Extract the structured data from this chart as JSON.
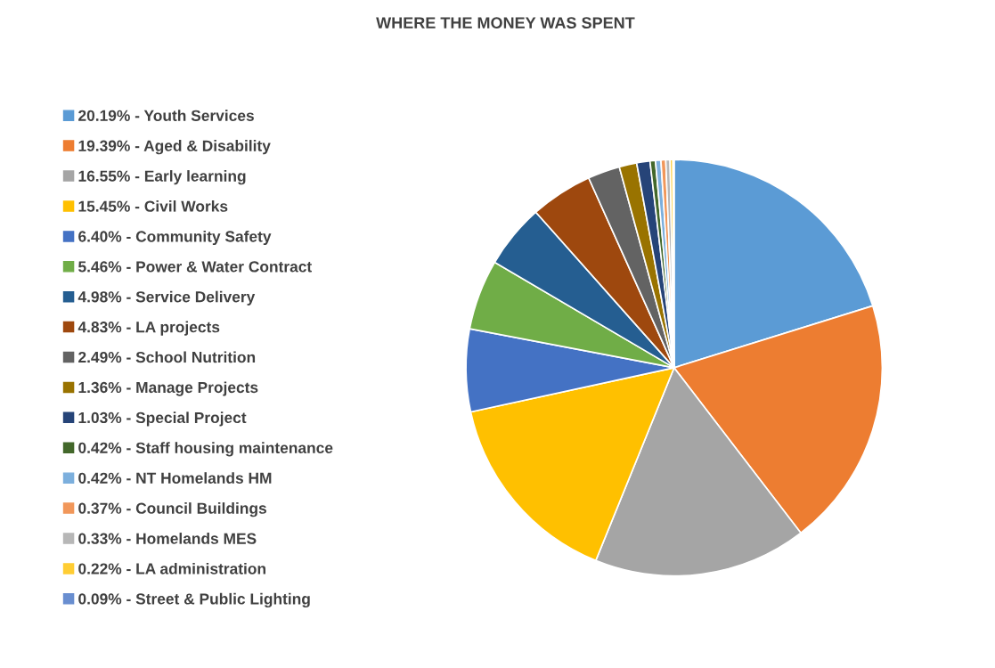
{
  "chart_data": {
    "type": "pie",
    "title": "WHERE THE MONEY WAS SPENT",
    "categories": [
      "20.19% - Youth Services",
      "19.39% - Aged & Disability",
      "16.55% - Early learning",
      "15.45% - Civil Works",
      "6.40% - Community Safety",
      "5.46% - Power & Water Contract",
      "4.98% - Service Delivery",
      "4.83% - LA projects",
      "2.49% - School Nutrition",
      "1.36% - Manage Projects",
      "1.03% - Special Project",
      "0.42% - Staff housing maintenance",
      "0.42% - NT Homelands HM",
      "0.37% - Council Buildings",
      "0.33% - Homelands MES",
      "0.22% - LA administration",
      "0.09% - Street & Public Lighting"
    ],
    "values": [
      20.19,
      19.39,
      16.55,
      15.45,
      6.4,
      5.46,
      4.98,
      4.83,
      2.49,
      1.36,
      1.03,
      0.42,
      0.42,
      0.37,
      0.33,
      0.22,
      0.09
    ],
    "colors": [
      "#5b9bd5",
      "#ed7d31",
      "#a5a5a5",
      "#ffc000",
      "#4472c4",
      "#70ad47",
      "#255e91",
      "#9e480e",
      "#636363",
      "#997300",
      "#264478",
      "#43682b",
      "#7cafdd",
      "#f1975a",
      "#b7b7b7",
      "#ffcd33",
      "#698ed0"
    ],
    "legend": "left"
  }
}
